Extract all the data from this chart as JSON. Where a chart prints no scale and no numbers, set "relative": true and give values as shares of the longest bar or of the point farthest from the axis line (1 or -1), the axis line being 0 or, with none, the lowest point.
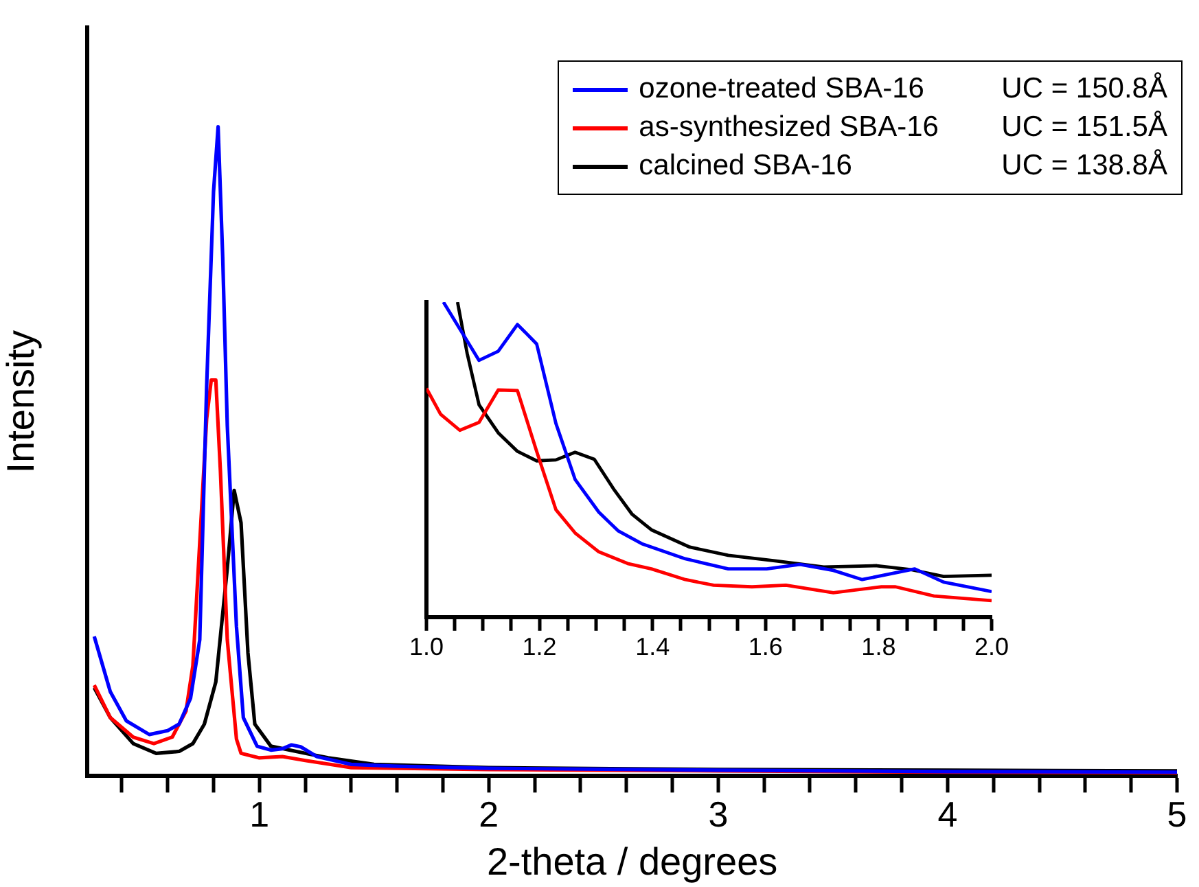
{
  "chart_data": [
    {
      "type": "line",
      "xlabel": "2-theta / degrees",
      "ylabel": "Intensity",
      "relative": true,
      "xlim": [
        0.25,
        5
      ],
      "xticks": [
        {
          "value": 0.4,
          "label": null
        },
        {
          "value": 0.6,
          "label": null
        },
        {
          "value": 0.8,
          "label": null
        },
        1,
        {
          "value": 1.2,
          "label": null
        },
        {
          "value": 1.4,
          "label": null
        },
        {
          "value": 1.6,
          "label": null
        },
        {
          "value": 1.8,
          "label": null
        },
        2,
        {
          "value": 2.2,
          "label": null
        },
        {
          "value": 2.4,
          "label": null
        },
        {
          "value": 2.6,
          "label": null
        },
        {
          "value": 2.8,
          "label": null
        },
        3,
        {
          "value": 3.2,
          "label": null
        },
        {
          "value": 3.4,
          "label": null
        },
        {
          "value": 3.6,
          "label": null
        },
        {
          "value": 3.8,
          "label": null
        },
        4,
        {
          "value": 4.2,
          "label": null
        },
        {
          "value": 4.4,
          "label": null
        },
        {
          "value": 4.6,
          "label": null
        },
        {
          "value": 4.8,
          "label": null
        },
        5
      ],
      "tick_labels": "x",
      "grid": false,
      "legend": "top right",
      "marker": "none",
      "line_style": "solid",
      "annotations": [
        "UC = 150.8Å",
        "UC = 151.5Å",
        "UC = 138.8Å"
      ],
      "series": [
        {
          "name": "ozone-treated SBA-16",
          "color": "#0000ff",
          "x": [
            0.28,
            0.35,
            0.42,
            0.52,
            0.6,
            0.65,
            0.7,
            0.74,
            0.77,
            0.8,
            0.82,
            0.84,
            0.86,
            0.9,
            0.93,
            0.99,
            1.05,
            1.1,
            1.14,
            1.18,
            1.25,
            1.4,
            1.6,
            2,
            3,
            4,
            5
          ],
          "values": [
            0.215,
            0.13,
            0.085,
            0.064,
            0.07,
            0.08,
            0.12,
            0.21,
            0.6,
            0.9,
            1,
            0.8,
            0.54,
            0.23,
            0.09,
            0.046,
            0.04,
            0.042,
            0.048,
            0.045,
            0.03,
            0.018,
            0.015,
            0.012,
            0.009,
            0.007,
            0.006
          ]
        },
        {
          "name": "as-synthesized SBA-16",
          "color": "#ff0000",
          "x": [
            0.28,
            0.35,
            0.45,
            0.54,
            0.62,
            0.68,
            0.71,
            0.74,
            0.77,
            0.79,
            0.81,
            0.83,
            0.86,
            0.9,
            0.92,
            1.0,
            1.1,
            1.2,
            1.4,
            2,
            3,
            4,
            5
          ],
          "values": [
            0.14,
            0.09,
            0.06,
            0.05,
            0.06,
            0.1,
            0.17,
            0.36,
            0.55,
            0.61,
            0.61,
            0.47,
            0.21,
            0.057,
            0.035,
            0.028,
            0.03,
            0.024,
            0.013,
            0.01,
            0.008,
            0.006,
            0.005
          ]
        },
        {
          "name": "calcined SBA-16",
          "color": "#000000",
          "x": [
            0.28,
            0.35,
            0.45,
            0.55,
            0.65,
            0.71,
            0.76,
            0.81,
            0.86,
            0.89,
            0.92,
            0.95,
            0.98,
            1.05,
            1.2,
            1.3,
            1.5,
            2,
            3,
            4,
            5
          ],
          "values": [
            0.136,
            0.09,
            0.05,
            0.035,
            0.038,
            0.05,
            0.08,
            0.145,
            0.32,
            0.44,
            0.39,
            0.19,
            0.08,
            0.046,
            0.035,
            0.028,
            0.018,
            0.013,
            0.01,
            0.009,
            0.008
          ]
        }
      ]
    },
    {
      "type": "line",
      "relative": true,
      "xlim": [
        1,
        2
      ],
      "xticks": [
        {
          "value": 1,
          "label": "1.0"
        },
        {
          "value": 1.05,
          "label": null
        },
        {
          "value": 1.1,
          "label": null
        },
        {
          "value": 1.15,
          "label": null
        },
        {
          "value": 1.2,
          "label": "1.2"
        },
        {
          "value": 1.25,
          "label": null
        },
        {
          "value": 1.3,
          "label": null
        },
        {
          "value": 1.35,
          "label": null
        },
        {
          "value": 1.4,
          "label": "1.4"
        },
        {
          "value": 1.45,
          "label": null
        },
        {
          "value": 1.5,
          "label": null
        },
        {
          "value": 1.55,
          "label": null
        },
        {
          "value": 1.6,
          "label": "1.6"
        },
        {
          "value": 1.65,
          "label": null
        },
        {
          "value": 1.7,
          "label": null
        },
        {
          "value": 1.75,
          "label": null
        },
        {
          "value": 1.8,
          "label": "1.8"
        },
        {
          "value": 1.85,
          "label": null
        },
        {
          "value": 1.9,
          "label": null
        },
        {
          "value": 1.95,
          "label": null
        },
        {
          "value": 2,
          "label": "2.0"
        }
      ],
      "tick_labels": "x",
      "grid": false,
      "marker": "none",
      "line_style": "solid",
      "series": [
        {
          "color": "#0000ff",
          "x": [
            1.03,
            1.093,
            1.127,
            1.161,
            1.195,
            1.229,
            1.263,
            1.305,
            1.339,
            1.381,
            1.458,
            1.534,
            1.602,
            1.661,
            1.72,
            1.771,
            1.864,
            1.915,
            2.0
          ],
          "values": [
            1.0,
            0.815,
            0.844,
            0.929,
            0.867,
            0.615,
            0.437,
            0.333,
            0.274,
            0.233,
            0.185,
            0.153,
            0.153,
            0.167,
            0.148,
            0.119,
            0.153,
            0.111,
            0.081
          ]
        },
        {
          "color": "#ff0000",
          "x": [
            1.0,
            1.025,
            1.059,
            1.093,
            1.127,
            1.161,
            1.195,
            1.229,
            1.263,
            1.305,
            1.356,
            1.398,
            1.458,
            1.508,
            1.576,
            1.636,
            1.72,
            1.805,
            1.83,
            1.898,
            2.0
          ],
          "values": [
            0.726,
            0.644,
            0.593,
            0.618,
            0.721,
            0.719,
            0.526,
            0.341,
            0.267,
            0.207,
            0.17,
            0.153,
            0.119,
            0.101,
            0.096,
            0.101,
            0.077,
            0.096,
            0.096,
            0.067,
            0.052
          ]
        },
        {
          "color": "#000000",
          "x": [
            1.055,
            1.072,
            1.093,
            1.127,
            1.161,
            1.195,
            1.229,
            1.263,
            1.297,
            1.331,
            1.364,
            1.398,
            1.466,
            1.534,
            1.619,
            1.703,
            1.797,
            1.856,
            1.915,
            2.0
          ],
          "values": [
            1.0,
            0.837,
            0.674,
            0.585,
            0.526,
            0.496,
            0.499,
            0.523,
            0.501,
            0.407,
            0.326,
            0.277,
            0.222,
            0.196,
            0.178,
            0.159,
            0.163,
            0.151,
            0.129,
            0.133
          ]
        }
      ]
    }
  ]
}
